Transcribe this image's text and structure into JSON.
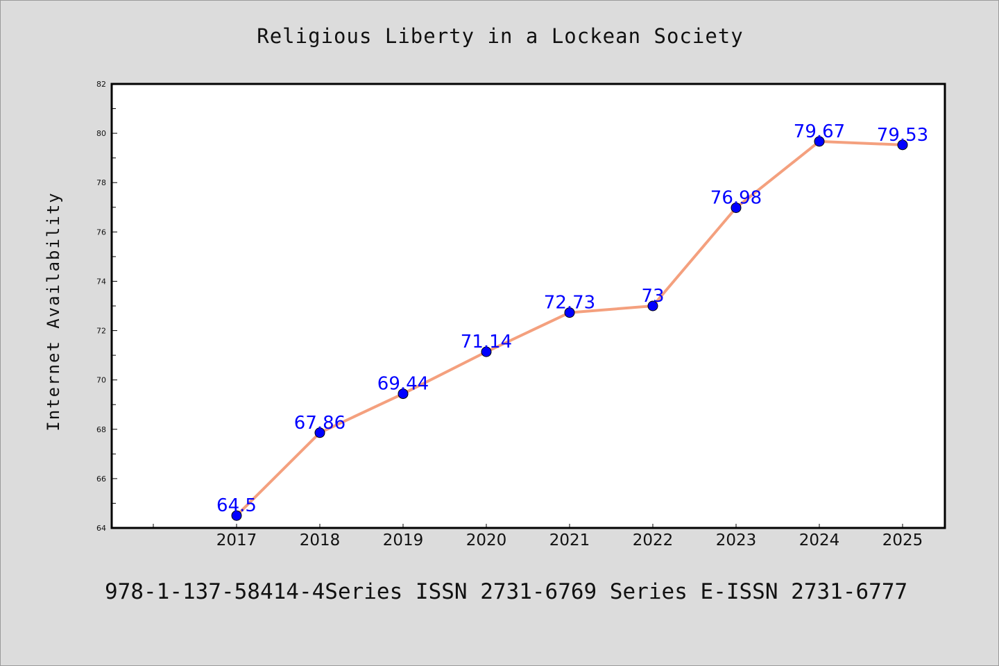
{
  "chart_data": {
    "type": "line",
    "title": "Religious Liberty in a Lockean Society",
    "xlabel": "",
    "ylabel": "Internet Availability",
    "categories": [
      "2017",
      "2018",
      "2019",
      "2020",
      "2021",
      "2022",
      "2023",
      "2024",
      "2025"
    ],
    "series": [
      {
        "values": [
          64.5,
          67.86,
          69.44,
          71.14,
          72.73,
          73,
          76.98,
          79.67,
          79.53
        ],
        "data_labels": [
          "64.5",
          "67.86",
          "69.44",
          "71.14",
          "72.73",
          "73",
          "76.98",
          "79.67",
          "79.53"
        ],
        "line_color": "#f4a07e",
        "marker_color": "#0000ff"
      }
    ],
    "ylim": [
      64,
      82
    ],
    "y_ticks": [
      "64",
      "66",
      "68",
      "70",
      "72",
      "74",
      "76",
      "78",
      "80",
      "82"
    ],
    "grid": false,
    "legend": "none"
  },
  "footer": {
    "text": "978-1-137-58414-4Series ISSN 2731-6769 Series E-ISSN 2731-6777"
  },
  "colors": {
    "background": "#dcdcdc",
    "plot_background": "#ffffff",
    "data_label": "#0000ff"
  }
}
